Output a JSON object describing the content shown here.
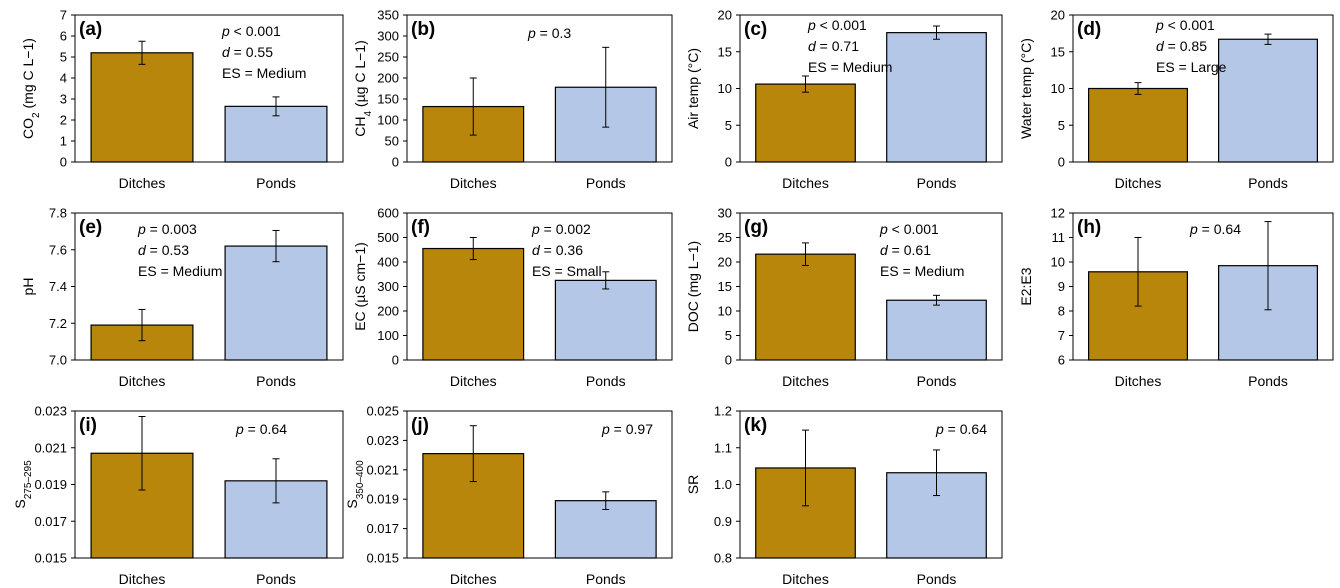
{
  "colors": {
    "ditches": "#B8860B",
    "ponds": "#B4C7E7",
    "frame": "#000000"
  },
  "chart_data": [
    {
      "type": "bar",
      "panel": "(a)",
      "categories": [
        "Ditches",
        "Ponds"
      ],
      "values": [
        5.2,
        2.65
      ],
      "errors": [
        0.55,
        0.45
      ],
      "ylabel_main": "CO",
      "ylabel_sub": "2",
      "ylabel_tail": " (mg C L−1)",
      "ylim": [
        0,
        7
      ],
      "ticks": [
        "0",
        "1",
        "2",
        "3",
        "4",
        "5",
        "6",
        "7"
      ],
      "stats": [
        {
          "sym": "p",
          "text": " < 0.001"
        },
        {
          "sym": "d",
          "text": " = 0.55"
        },
        {
          "sym": "",
          "text": "ES = Medium"
        }
      ]
    },
    {
      "type": "bar",
      "panel": "(b)",
      "categories": [
        "Ditches",
        "Ponds"
      ],
      "values": [
        132,
        178
      ],
      "errors": [
        68,
        95
      ],
      "ylabel_main": "CH",
      "ylabel_sub": "4",
      "ylabel_tail": " (µg C L−1)",
      "ylim": [
        0,
        350
      ],
      "ticks": [
        "0",
        "50",
        "100",
        "150",
        "200",
        "250",
        "300",
        "350"
      ],
      "stats": [
        {
          "sym": "p",
          "text": " = 0.3"
        }
      ]
    },
    {
      "type": "bar",
      "panel": "(c)",
      "categories": [
        "Ditches",
        "Ponds"
      ],
      "values": [
        10.6,
        17.6
      ],
      "errors": [
        1.1,
        0.9
      ],
      "ylabel_main": "Air temp (°C)",
      "ylabel_sub": "",
      "ylabel_tail": "",
      "ylim": [
        0,
        20
      ],
      "ticks": [
        "0",
        "5",
        "10",
        "15",
        "20"
      ],
      "stats": [
        {
          "sym": "p",
          "text": " < 0.001"
        },
        {
          "sym": "d",
          "text": " = 0.71"
        },
        {
          "sym": "",
          "text": "ES = Medium"
        }
      ]
    },
    {
      "type": "bar",
      "panel": "(d)",
      "categories": [
        "Ditches",
        "Ponds"
      ],
      "values": [
        10.0,
        16.7
      ],
      "errors": [
        0.8,
        0.7
      ],
      "ylabel_main": "Water temp (°C)",
      "ylabel_sub": "",
      "ylabel_tail": "",
      "ylim": [
        0,
        20
      ],
      "ticks": [
        "0",
        "5",
        "10",
        "15",
        "20"
      ],
      "stats": [
        {
          "sym": "p",
          "text": " < 0.001"
        },
        {
          "sym": "d",
          "text": " = 0.85"
        },
        {
          "sym": "",
          "text": "ES = Large"
        }
      ]
    },
    {
      "type": "bar",
      "panel": "(e)",
      "categories": [
        "Ditches",
        "Ponds"
      ],
      "values": [
        7.19,
        7.62
      ],
      "errors": [
        0.085,
        0.085
      ],
      "ylabel_main": "pH",
      "ylabel_sub": "",
      "ylabel_tail": "",
      "ylim": [
        7.0,
        7.8
      ],
      "ticks": [
        "7.0",
        "7.2",
        "7.4",
        "7.6",
        "7.8"
      ],
      "stats": [
        {
          "sym": "p",
          "text": " = 0.003"
        },
        {
          "sym": "d",
          "text": " = 0.53"
        },
        {
          "sym": "",
          "text": "ES = Medium"
        }
      ]
    },
    {
      "type": "bar",
      "panel": "(f)",
      "categories": [
        "Ditches",
        "Ponds"
      ],
      "values": [
        455,
        325
      ],
      "errors": [
        45,
        35
      ],
      "ylabel_main": "EC (µS cm−1)",
      "ylabel_sub": "",
      "ylabel_tail": "",
      "ylim": [
        0,
        600
      ],
      "ticks": [
        "0",
        "100",
        "200",
        "300",
        "400",
        "500",
        "600"
      ],
      "stats": [
        {
          "sym": "p",
          "text": " = 0.002"
        },
        {
          "sym": "d",
          "text": " = 0.36"
        },
        {
          "sym": "",
          "text": "ES = Small"
        }
      ]
    },
    {
      "type": "bar",
      "panel": "(g)",
      "categories": [
        "Ditches",
        "Ponds"
      ],
      "values": [
        21.6,
        12.2
      ],
      "errors": [
        2.3,
        1.0
      ],
      "ylabel_main": "DOC (mg L−1)",
      "ylabel_sub": "",
      "ylabel_tail": "",
      "ylim": [
        0,
        30
      ],
      "ticks": [
        "0",
        "5",
        "10",
        "15",
        "20",
        "25",
        "30"
      ],
      "stats": [
        {
          "sym": "p",
          "text": " < 0.001"
        },
        {
          "sym": "d",
          "text": " = 0.61"
        },
        {
          "sym": "",
          "text": "ES = Medium"
        }
      ]
    },
    {
      "type": "bar",
      "panel": "(h)",
      "categories": [
        "Ditches",
        "Ponds"
      ],
      "values": [
        9.6,
        9.85
      ],
      "errors": [
        1.4,
        1.8
      ],
      "ylabel_main": "E2:E3",
      "ylabel_sub": "",
      "ylabel_tail": "",
      "ylim": [
        6,
        12
      ],
      "ticks": [
        "6",
        "7",
        "8",
        "9",
        "10",
        "11",
        "12"
      ],
      "stats": [
        {
          "sym": "p",
          "text": " = 0.64"
        }
      ]
    },
    {
      "type": "bar",
      "panel": "(i)",
      "categories": [
        "Ditches",
        "Ponds"
      ],
      "values": [
        0.0207,
        0.0192
      ],
      "errors": [
        0.002,
        0.0012
      ],
      "ylabel_main": "S",
      "ylabel_sub": "275–295",
      "ylabel_tail": "",
      "ylim": [
        0.015,
        0.023
      ],
      "ticks": [
        "0.015",
        "0.017",
        "0.019",
        "0.021",
        "0.023"
      ],
      "stats": [
        {
          "sym": "p",
          "text": " = 0.64"
        }
      ]
    },
    {
      "type": "bar",
      "panel": "(j)",
      "categories": [
        "Ditches",
        "Ponds"
      ],
      "values": [
        0.0221,
        0.0189
      ],
      "errors": [
        0.0019,
        0.0006
      ],
      "ylabel_main": "S",
      "ylabel_sub": "350–400",
      "ylabel_tail": "",
      "ylim": [
        0.015,
        0.025
      ],
      "ticks": [
        "0.015",
        "0.017",
        "0.019",
        "0.021",
        "0.023",
        "0.025"
      ],
      "stats": [
        {
          "sym": "p",
          "text": " = 0.97"
        }
      ]
    },
    {
      "type": "bar",
      "panel": "(k)",
      "categories": [
        "Ditches",
        "Ponds"
      ],
      "values": [
        1.045,
        1.032
      ],
      "errors": [
        0.103,
        0.062
      ],
      "ylabel_main": "SR",
      "ylabel_sub": "",
      "ylabel_tail": "",
      "ylim": [
        0.8,
        1.2
      ],
      "ticks": [
        "0.8",
        "0.9",
        "1.0",
        "1.1",
        "1.2"
      ],
      "stats": [
        {
          "sym": "p",
          "text": " = 0.64"
        }
      ]
    }
  ]
}
